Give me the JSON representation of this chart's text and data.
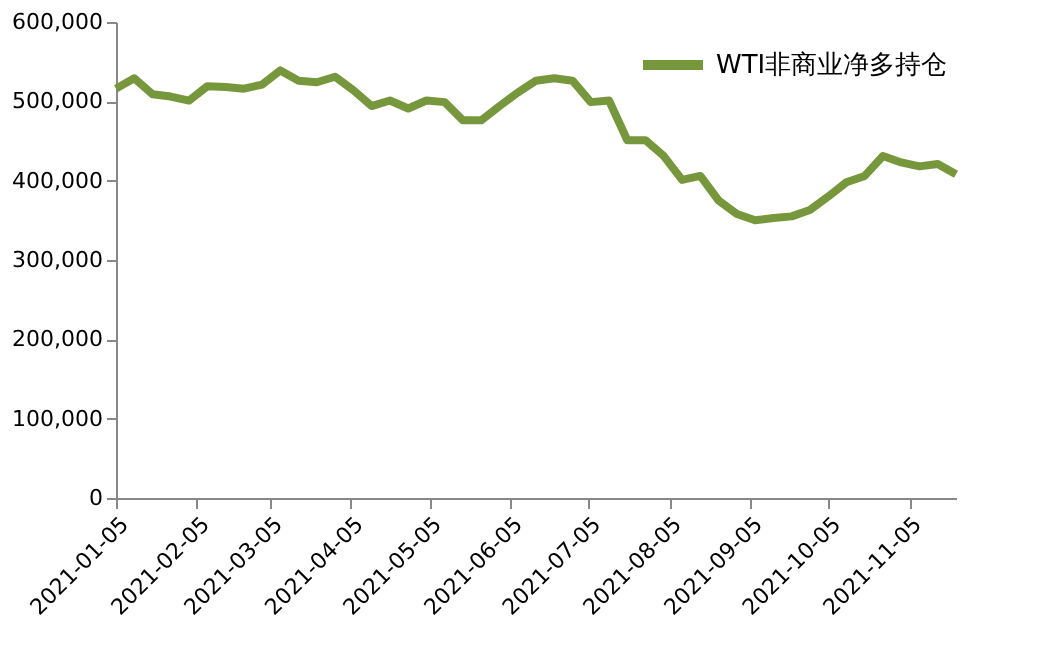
{
  "chart_data": {
    "type": "line",
    "x": [
      "2021-01-05",
      "2021-01-12",
      "2021-01-19",
      "2021-01-26",
      "2021-02-02",
      "2021-02-09",
      "2021-02-16",
      "2021-02-23",
      "2021-03-02",
      "2021-03-09",
      "2021-03-16",
      "2021-03-23",
      "2021-03-30",
      "2021-04-06",
      "2021-04-13",
      "2021-04-20",
      "2021-04-27",
      "2021-05-04",
      "2021-05-11",
      "2021-05-18",
      "2021-05-25",
      "2021-06-01",
      "2021-06-08",
      "2021-06-15",
      "2021-06-22",
      "2021-06-29",
      "2021-07-06",
      "2021-07-13",
      "2021-07-20",
      "2021-07-27",
      "2021-08-03",
      "2021-08-10",
      "2021-08-17",
      "2021-08-24",
      "2021-08-31",
      "2021-09-07",
      "2021-09-14",
      "2021-09-21",
      "2021-09-28",
      "2021-10-05",
      "2021-10-12",
      "2021-10-19",
      "2021-10-26",
      "2021-11-02",
      "2021-11-09",
      "2021-11-16",
      "2021-11-23"
    ],
    "series": [
      {
        "name": "WTI非商业净多持仓",
        "color": "#77973d",
        "values": [
          516000,
          529000,
          509000,
          506000,
          501000,
          519000,
          518000,
          516000,
          521000,
          539000,
          526000,
          524000,
          531000,
          514000,
          494000,
          501000,
          491000,
          501000,
          499000,
          476000,
          476000,
          494000,
          511000,
          526000,
          529000,
          526000,
          499000,
          501000,
          451000,
          451000,
          431000,
          401000,
          406000,
          375000,
          358000,
          350000,
          353000,
          355000,
          363000,
          380000,
          398000,
          406000,
          431000,
          423000,
          418000,
          421000,
          408000
        ]
      }
    ],
    "xlim": [
      "2021-01-05",
      "2021-11-23"
    ],
    "xticks": [
      "2021-01-05",
      "2021-02-05",
      "2021-03-05",
      "2021-04-05",
      "2021-05-05",
      "2021-06-05",
      "2021-07-05",
      "2021-08-05",
      "2021-09-05",
      "2021-10-05",
      "2021-11-05"
    ],
    "ylim": [
      0,
      600000
    ],
    "yticks": [
      0,
      {
        "value": 100000,
        "label": "100,000"
      },
      {
        "value": 200000,
        "label": "200,000"
      },
      {
        "value": 300000,
        "label": "300,000"
      },
      {
        "value": 400000,
        "label": "400,000"
      },
      {
        "value": 500000,
        "label": "500,000"
      },
      {
        "value": 600000,
        "label": "600,000"
      }
    ],
    "grid": false,
    "legend": "top right",
    "marker": "none",
    "line_style": "solid"
  }
}
